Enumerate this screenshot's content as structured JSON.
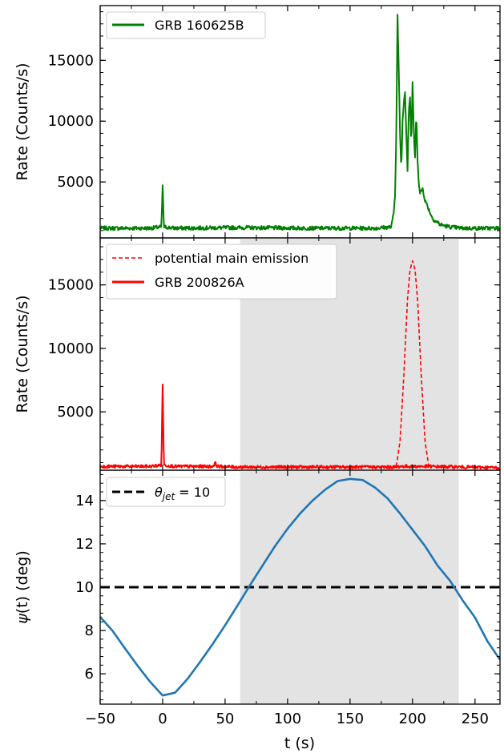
{
  "chart_data": [
    {
      "type": "line",
      "panel": "top",
      "xlim": [
        -50,
        270
      ],
      "ylim": [
        400,
        19500
      ],
      "ylabel": "Rate (Counts/s)",
      "yticks": [
        5000,
        10000,
        15000
      ],
      "grid": false,
      "legend_placement": "top-left",
      "series": [
        {
          "name": "GRB 160625B",
          "color": "#008000",
          "style": "solid",
          "x": [
            -50,
            -10,
            -1,
            0,
            1,
            10,
            60,
            120,
            170,
            183,
            185,
            186,
            187,
            188,
            189,
            190,
            191,
            192,
            193,
            194,
            195,
            196,
            197,
            198,
            199,
            200,
            201,
            202,
            203,
            204,
            205,
            206,
            208,
            210,
            212,
            214,
            216,
            218,
            220,
            222,
            226,
            230,
            240,
            270
          ],
          "y": [
            1200,
            1200,
            1300,
            4700,
            1300,
            1200,
            1250,
            1200,
            1200,
            1300,
            2500,
            4000,
            9000,
            18700,
            14000,
            9000,
            6000,
            10000,
            11500,
            12500,
            9000,
            6000,
            11000,
            12000,
            8000,
            13300,
            9000,
            7000,
            10500,
            7000,
            5000,
            4000,
            4500,
            3500,
            3000,
            2500,
            2000,
            1800,
            1700,
            1500,
            1400,
            1300,
            1200,
            1200
          ],
          "noise": 160
        }
      ]
    },
    {
      "type": "line",
      "panel": "middle",
      "xlim": [
        -50,
        270
      ],
      "ylim": [
        400,
        18700
      ],
      "ylabel": "Rate (Counts/s)",
      "yticks": [
        5000,
        10000,
        15000
      ],
      "grid": false,
      "shaded_span": [
        62,
        237
      ],
      "legend_placement": "top-left",
      "series": [
        {
          "name": "potential main emission",
          "color": "#ff0000",
          "style": "dashed",
          "x": [
            187,
            190,
            193,
            196,
            198,
            200,
            202,
            204,
            207,
            210,
            213
          ],
          "y": [
            700,
            2700,
            7800,
            13900,
            16200,
            16900,
            16200,
            13900,
            7800,
            2700,
            700
          ]
        },
        {
          "name": "GRB 200826A",
          "color": "#ff0000",
          "style": "solid",
          "x": [
            -50,
            -10,
            -1,
            0,
            1,
            10,
            40,
            42,
            44,
            60,
            120,
            187,
            190,
            200,
            210,
            213,
            270
          ],
          "y": [
            700,
            700,
            800,
            7200,
            800,
            700,
            700,
            950,
            700,
            650,
            650,
            650,
            700,
            700,
            700,
            700,
            600
          ],
          "noise": 120
        }
      ]
    },
    {
      "type": "line",
      "panel": "bottom",
      "xlim": [
        -50,
        270
      ],
      "ylim": [
        4.6,
        15.4
      ],
      "xlabel": "t (s)",
      "ylabel": "ψ(t) (deg)",
      "xticks": [
        -50,
        0,
        50,
        100,
        150,
        200,
        250
      ],
      "yticks": [
        6,
        8,
        10,
        12,
        14
      ],
      "grid": false,
      "shaded_span": [
        62,
        237
      ],
      "legend_placement": "top-left",
      "series": [
        {
          "name": "θ_jet = 10",
          "color": "#000000",
          "style": "dashed",
          "x": [
            -50,
            270
          ],
          "y": [
            10,
            10
          ]
        },
        {
          "name": "",
          "color": "#1f77b4",
          "style": "solid",
          "x": [
            -50,
            -40,
            -30,
            -20,
            -10,
            0,
            10,
            20,
            30,
            40,
            50,
            60,
            70,
            80,
            90,
            100,
            110,
            120,
            130,
            140,
            150,
            160,
            170,
            180,
            190,
            200,
            210,
            220,
            230,
            240,
            250,
            260,
            270
          ],
          "y": [
            8.63,
            7.98,
            7.16,
            6.37,
            5.63,
            5.0,
            5.13,
            5.77,
            6.55,
            7.37,
            8.24,
            9.16,
            10.1,
            11.0,
            11.9,
            12.7,
            13.4,
            14.0,
            14.5,
            14.9,
            15.0,
            14.95,
            14.6,
            14.1,
            13.4,
            12.65,
            11.9,
            11.0,
            10.3,
            9.4,
            8.6,
            7.5,
            6.65
          ]
        }
      ]
    }
  ],
  "legends": {
    "top": {
      "item1": "GRB 160625B"
    },
    "middle": {
      "item1": "potential main emission",
      "item2": "GRB 200826A"
    },
    "bottom": {
      "prefix": "θ",
      "sub": "jet",
      "suffix": " = 10"
    }
  },
  "axes": {
    "ylabel_rate": "Rate (Counts/s)",
    "ylabel_psi_prefix": "ψ",
    "ylabel_psi_suffix": "(t) (deg)",
    "xlabel": "t (s)"
  }
}
